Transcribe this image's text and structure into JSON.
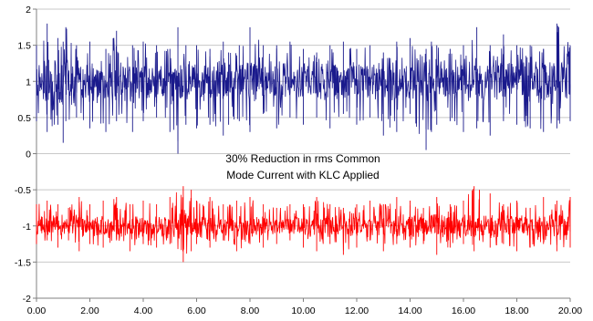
{
  "chart_data": {
    "type": "line",
    "title": "",
    "xlabel": "",
    "ylabel": "",
    "xlim": [
      0,
      20
    ],
    "ylim": [
      -2,
      2
    ],
    "x_ticks": [
      0,
      2,
      4,
      6,
      8,
      10,
      12,
      14,
      16,
      18,
      20
    ],
    "x_tick_labels": [
      "0.00",
      "2.00",
      "4.00",
      "6.00",
      "8.00",
      "10.00",
      "12.00",
      "14.00",
      "16.00",
      "18.00",
      "20.00"
    ],
    "y_ticks": [
      2,
      1.5,
      1,
      0.5,
      0,
      -0.5,
      -1,
      -1.5,
      -2
    ],
    "y_tick_labels": [
      "2",
      "1.5",
      "1",
      "0.5",
      "0",
      "-0.5",
      "-1",
      "-1.5",
      "-2"
    ],
    "grid": "horizontal",
    "annotation": [
      "30% Reduction in rms Common",
      "Mode Current with KLC Applied"
    ],
    "series": [
      {
        "color": "#1a1a8c",
        "baseline": 1.0,
        "x": [
          0.0,
          0.4,
          0.8,
          1.0,
          1.1,
          1.5,
          2.0,
          2.6,
          3.0,
          3.6,
          4.0,
          4.5,
          5.0,
          5.3,
          5.6,
          6.0,
          6.5,
          7.0,
          7.2,
          7.6,
          8.0,
          8.5,
          9.0,
          9.5,
          10.0,
          10.5,
          11.0,
          11.5,
          12.0,
          12.5,
          13.0,
          13.5,
          14.0,
          14.6,
          14.8,
          15.0,
          15.5,
          16.0,
          16.5,
          17.0,
          17.5,
          18.0,
          18.5,
          19.0,
          19.5,
          20.0
        ],
        "peak_high": [
          1.5,
          1.8,
          1.6,
          1.55,
          1.75,
          1.5,
          1.55,
          1.45,
          1.7,
          1.5,
          1.55,
          1.5,
          1.45,
          1.75,
          1.5,
          1.5,
          1.45,
          1.55,
          1.4,
          1.5,
          1.75,
          1.5,
          1.5,
          1.55,
          1.45,
          1.4,
          1.5,
          1.55,
          1.45,
          1.5,
          1.4,
          1.55,
          1.6,
          1.45,
          1.55,
          1.5,
          1.45,
          1.5,
          1.75,
          1.5,
          1.65,
          1.5,
          1.5,
          1.45,
          1.8,
          1.5
        ],
        "peak_low": [
          0.45,
          0.3,
          0.4,
          0.15,
          0.45,
          0.5,
          0.35,
          0.3,
          0.45,
          0.3,
          0.45,
          0.5,
          0.3,
          0.0,
          0.4,
          0.35,
          0.4,
          0.25,
          0.4,
          0.45,
          0.3,
          0.55,
          0.35,
          0.5,
          0.4,
          0.5,
          0.35,
          0.55,
          0.4,
          0.5,
          0.25,
          0.3,
          0.55,
          0.05,
          0.3,
          0.4,
          0.45,
          0.3,
          0.35,
          0.25,
          0.45,
          0.4,
          0.35,
          0.3,
          0.35,
          0.45
        ]
      },
      {
        "color": "#ff0000",
        "baseline": -1.0,
        "x": [
          0.0,
          0.4,
          0.8,
          1.2,
          1.6,
          2.0,
          2.5,
          3.0,
          3.5,
          4.0,
          4.5,
          5.0,
          5.5,
          5.8,
          6.0,
          6.5,
          7.0,
          7.5,
          8.0,
          8.5,
          9.0,
          9.5,
          10.0,
          10.5,
          11.0,
          11.5,
          12.0,
          12.5,
          13.0,
          13.5,
          14.0,
          14.5,
          15.0,
          15.5,
          16.0,
          16.4,
          16.6,
          17.0,
          17.5,
          18.0,
          18.5,
          19.0,
          19.5,
          20.0
        ],
        "peak_high": [
          -0.7,
          -0.65,
          -0.7,
          -0.75,
          -0.6,
          -0.7,
          -0.65,
          -0.6,
          -0.7,
          -0.65,
          -0.7,
          -0.6,
          -0.45,
          -0.5,
          -0.65,
          -0.6,
          -0.7,
          -0.65,
          -0.6,
          -0.7,
          -0.75,
          -0.7,
          -0.7,
          -0.6,
          -0.7,
          -0.75,
          -0.7,
          -0.65,
          -0.7,
          -0.6,
          -0.65,
          -0.75,
          -0.6,
          -0.7,
          -0.65,
          -0.45,
          -0.5,
          -0.55,
          -0.7,
          -0.65,
          -0.75,
          -0.6,
          -0.65,
          -0.6
        ],
        "peak_low": [
          -1.25,
          -1.2,
          -1.3,
          -1.2,
          -1.35,
          -1.25,
          -1.3,
          -1.2,
          -1.35,
          -1.25,
          -1.3,
          -1.25,
          -1.5,
          -1.35,
          -1.25,
          -1.3,
          -1.2,
          -1.35,
          -1.25,
          -1.3,
          -1.25,
          -1.2,
          -1.3,
          -1.35,
          -1.25,
          -1.4,
          -1.3,
          -1.2,
          -1.35,
          -1.25,
          -1.3,
          -1.25,
          -1.4,
          -1.3,
          -1.25,
          -1.35,
          -1.2,
          -1.3,
          -1.25,
          -1.35,
          -1.3,
          -1.25,
          -1.35,
          -1.3
        ]
      }
    ]
  }
}
